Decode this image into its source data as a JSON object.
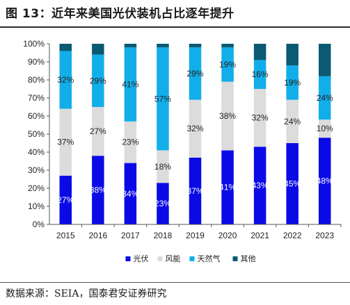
{
  "page": {
    "title": "图 13：近年来美国光伏装机占比逐年提升",
    "source": "数据来源：SEIA，国泰君安证券研究"
  },
  "chart_data": {
    "type": "bar",
    "stacked": true,
    "categories": [
      "2015",
      "2016",
      "2017",
      "2018",
      "2019",
      "2020",
      "2021",
      "2022",
      "2023"
    ],
    "series": [
      {
        "name": "光伏",
        "color": "#0a0ae6",
        "label_color": "#ffffff",
        "values": [
          27,
          38,
          34,
          23,
          37,
          41,
          43,
          45,
          48
        ]
      },
      {
        "name": "风能",
        "color": "#dcdcdc",
        "label_color": "#222222",
        "values": [
          37,
          27,
          23,
          18,
          32,
          38,
          32,
          24,
          10
        ]
      },
      {
        "name": "天然气",
        "color": "#12aeea",
        "label_color": "#222222",
        "values": [
          32,
          29,
          41,
          57,
          29,
          19,
          16,
          19,
          24
        ]
      },
      {
        "name": "其他",
        "color": "#095a72",
        "label_color": "#ffffff",
        "values": [
          4,
          6,
          2,
          2,
          2,
          2,
          9,
          12,
          18
        ]
      }
    ],
    "labeled_series": [
      "光伏",
      "风能",
      "天然气"
    ],
    "value_suffix": "%",
    "ylim": [
      0,
      100
    ],
    "yticks": [
      "0%",
      "10%",
      "20%",
      "30%",
      "40%",
      "50%",
      "60%",
      "70%",
      "80%",
      "90%",
      "100%"
    ],
    "legend": "bottom",
    "grid": false
  }
}
